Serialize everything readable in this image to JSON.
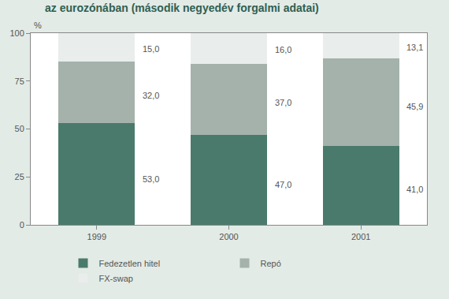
{
  "chart_data": {
    "type": "bar",
    "title": "az eurozónában (második negyedév forgalmi adatai)",
    "y_label": "%",
    "categories": [
      "1999",
      "2000",
      "2001"
    ],
    "series": [
      {
        "name": "Fedezetlen hitel",
        "color": "#4a7a6b",
        "values": [
          53.0,
          47.0,
          41.0
        ],
        "value_labels": [
          "53,0",
          "47,0",
          "41,0"
        ]
      },
      {
        "name": "Repó",
        "color": "#a4b2ab",
        "values": [
          32.0,
          37.0,
          45.9
        ],
        "value_labels": [
          "32,0",
          "37,0",
          "45,9"
        ]
      },
      {
        "name": "FX-swap",
        "color": "#e9edeb",
        "values": [
          15.0,
          16.0,
          13.1
        ],
        "value_labels": [
          "15,0",
          "16,0",
          "13,1"
        ]
      }
    ],
    "stacked": true,
    "data_labels": true,
    "ylim": [
      0,
      100
    ],
    "yticks": [
      0,
      25,
      50,
      75,
      100
    ],
    "grid": false,
    "legend": "bottom"
  }
}
